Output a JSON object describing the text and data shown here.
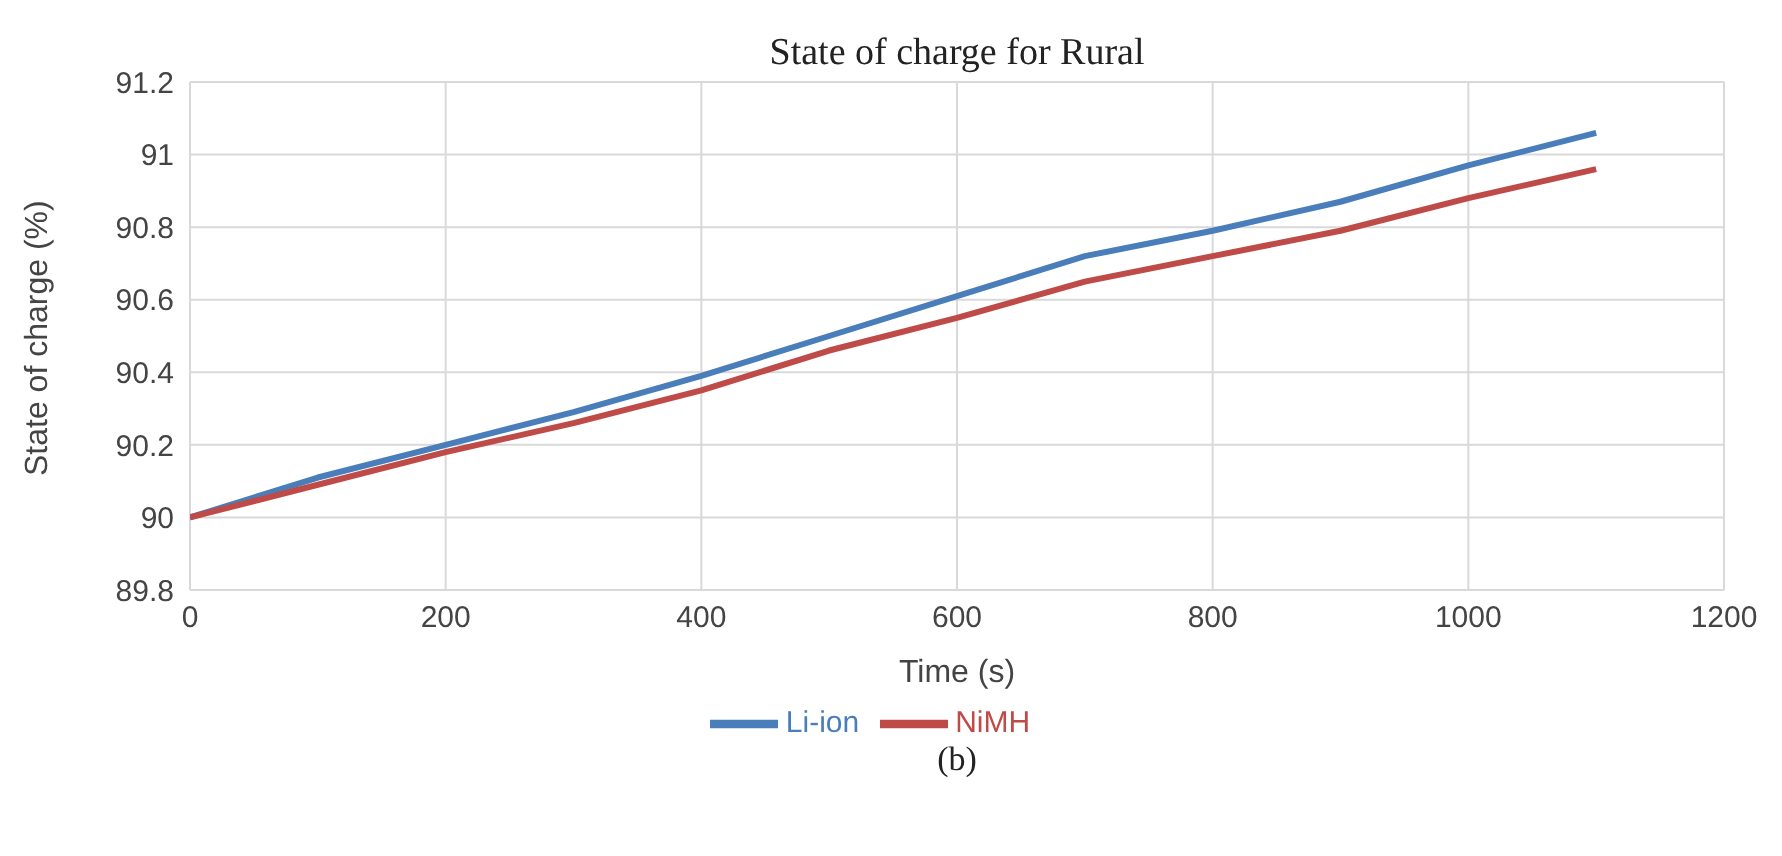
{
  "chart_data": {
    "type": "line",
    "title": "State of charge for Rural",
    "xlabel": "Time (s)",
    "ylabel": "State of charge (%)",
    "annotations": [
      "(b)"
    ],
    "x": [
      0,
      100,
      200,
      300,
      400,
      500,
      600,
      700,
      800,
      900,
      1000,
      1100
    ],
    "series": [
      {
        "name": "Li-ion",
        "color": "#4a7ebb",
        "values": [
          90,
          90.11,
          90.2,
          90.29,
          90.39,
          90.5,
          90.61,
          90.72,
          90.79,
          90.87,
          90.97,
          91.06
        ]
      },
      {
        "name": "NiMH",
        "color": "#be4b48",
        "values": [
          90,
          90.09,
          90.18,
          90.26,
          90.35,
          90.46,
          90.55,
          90.65,
          90.72,
          90.79,
          90.88,
          90.96
        ]
      }
    ],
    "xlim": [
      0,
      1200
    ],
    "xticks": [
      0,
      200,
      400,
      600,
      800,
      1000,
      1200
    ],
    "ylim": [
      89.8,
      91.2
    ],
    "yticks": [
      89.8,
      90,
      90.2,
      90.4,
      90.6,
      90.8,
      91,
      91.2
    ],
    "grid": true,
    "legend": "bottom",
    "marker": "none",
    "line_style": "solid"
  }
}
